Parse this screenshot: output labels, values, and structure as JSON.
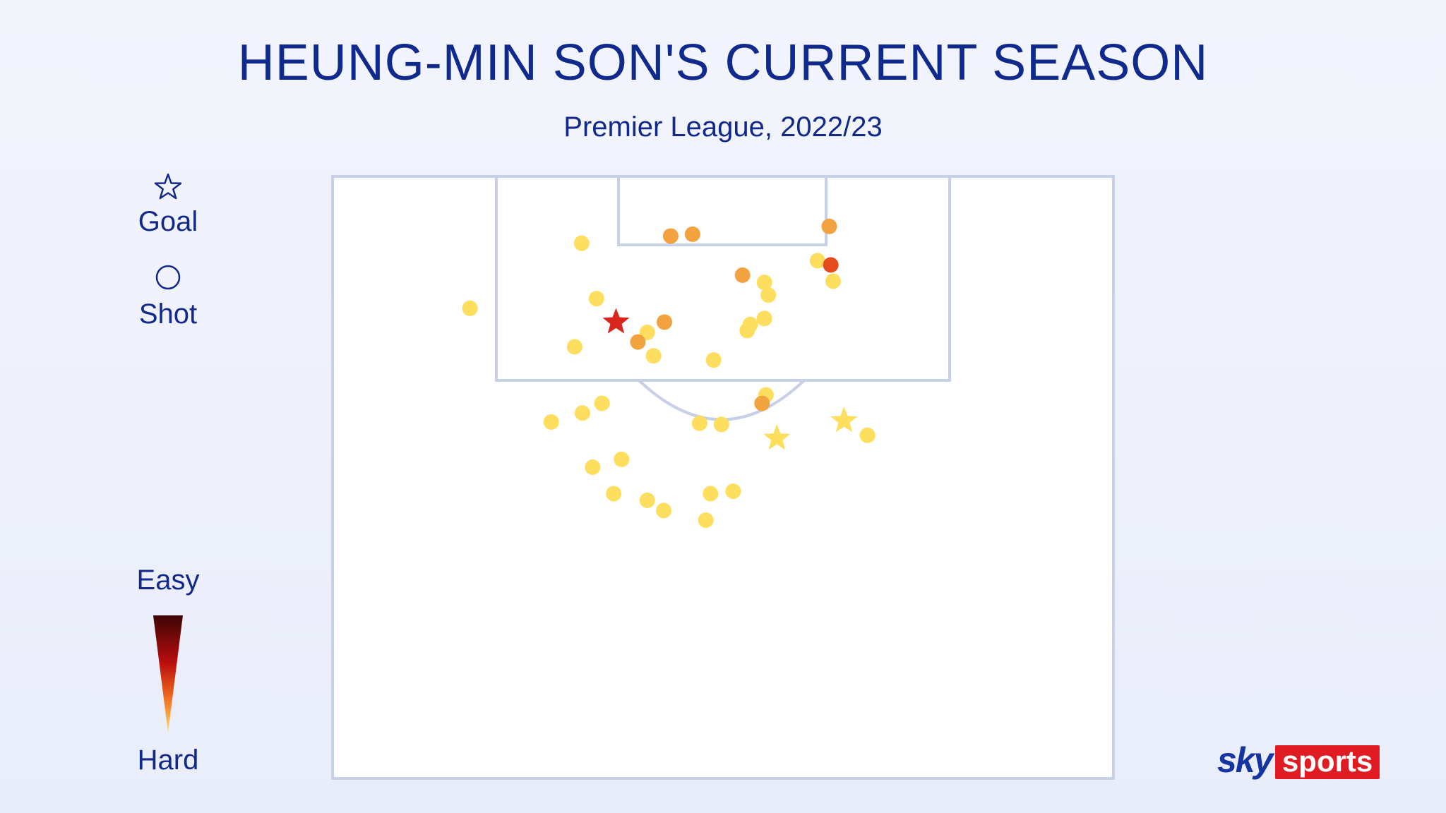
{
  "title": "HEUNG-MIN SON'S CURRENT SEASON",
  "subtitle": "Premier League, 2022/23",
  "legend": {
    "goal_label": "Goal",
    "shot_label": "Shot",
    "scale_top_label": "Easy",
    "scale_bottom_label": "Hard",
    "goal_icon": "star-outline-icon",
    "shot_icon": "circle-outline-icon",
    "scale_colors": [
      "#3d0505",
      "#b80d0d",
      "#f06a1c",
      "#fde36b"
    ]
  },
  "logo": {
    "sky": "sky",
    "sports": "sports"
  },
  "colors": {
    "title": "#0f2a8c",
    "pitch_lines": "#c7d0e6",
    "pitch_fill": "#ffffff",
    "hard": "#fede5e",
    "medium": "#f3a240",
    "easy": "#e64b1e",
    "very_easy": "#d9261c"
  },
  "chart_data": {
    "type": "scatter",
    "x_range": [
      0,
      1
    ],
    "y_range": [
      0,
      1
    ],
    "series": [
      {
        "type": "shot",
        "points": [
          {
            "x": 0.176,
            "y": 0.219,
            "difficulty": 0.1
          },
          {
            "x": 0.319,
            "y": 0.111,
            "difficulty": 0.1
          },
          {
            "x": 0.433,
            "y": 0.099,
            "difficulty": 0.45
          },
          {
            "x": 0.461,
            "y": 0.096,
            "difficulty": 0.45
          },
          {
            "x": 0.636,
            "y": 0.083,
            "difficulty": 0.45
          },
          {
            "x": 0.621,
            "y": 0.14,
            "difficulty": 0.1
          },
          {
            "x": 0.638,
            "y": 0.147,
            "difficulty": 0.6
          },
          {
            "x": 0.641,
            "y": 0.174,
            "difficulty": 0.1
          },
          {
            "x": 0.525,
            "y": 0.164,
            "difficulty": 0.45
          },
          {
            "x": 0.553,
            "y": 0.176,
            "difficulty": 0.1
          },
          {
            "x": 0.558,
            "y": 0.197,
            "difficulty": 0.1
          },
          {
            "x": 0.338,
            "y": 0.203,
            "difficulty": 0.1
          },
          {
            "x": 0.425,
            "y": 0.242,
            "difficulty": 0.45
          },
          {
            "x": 0.403,
            "y": 0.259,
            "difficulty": 0.1
          },
          {
            "x": 0.391,
            "y": 0.275,
            "difficulty": 0.45
          },
          {
            "x": 0.31,
            "y": 0.283,
            "difficulty": 0.1
          },
          {
            "x": 0.411,
            "y": 0.298,
            "difficulty": 0.1
          },
          {
            "x": 0.488,
            "y": 0.305,
            "difficulty": 0.1
          },
          {
            "x": 0.535,
            "y": 0.246,
            "difficulty": 0.1
          },
          {
            "x": 0.553,
            "y": 0.236,
            "difficulty": 0.1
          },
          {
            "x": 0.531,
            "y": 0.256,
            "difficulty": 0.1
          },
          {
            "x": 0.555,
            "y": 0.363,
            "difficulty": 0.1
          },
          {
            "x": 0.55,
            "y": 0.377,
            "difficulty": 0.45
          },
          {
            "x": 0.28,
            "y": 0.408,
            "difficulty": 0.1
          },
          {
            "x": 0.32,
            "y": 0.393,
            "difficulty": 0.1
          },
          {
            "x": 0.345,
            "y": 0.377,
            "difficulty": 0.1
          },
          {
            "x": 0.47,
            "y": 0.41,
            "difficulty": 0.1
          },
          {
            "x": 0.498,
            "y": 0.412,
            "difficulty": 0.1
          },
          {
            "x": 0.685,
            "y": 0.43,
            "difficulty": 0.1
          },
          {
            "x": 0.333,
            "y": 0.483,
            "difficulty": 0.1
          },
          {
            "x": 0.37,
            "y": 0.47,
            "difficulty": 0.1
          },
          {
            "x": 0.36,
            "y": 0.527,
            "difficulty": 0.1
          },
          {
            "x": 0.403,
            "y": 0.538,
            "difficulty": 0.1
          },
          {
            "x": 0.424,
            "y": 0.555,
            "difficulty": 0.1
          },
          {
            "x": 0.484,
            "y": 0.527,
            "difficulty": 0.1
          },
          {
            "x": 0.513,
            "y": 0.523,
            "difficulty": 0.1
          },
          {
            "x": 0.478,
            "y": 0.571,
            "difficulty": 0.1
          }
        ]
      },
      {
        "type": "goal",
        "points": [
          {
            "x": 0.363,
            "y": 0.242,
            "difficulty": 0.9
          },
          {
            "x": 0.655,
            "y": 0.406,
            "difficulty": 0.1
          },
          {
            "x": 0.569,
            "y": 0.435,
            "difficulty": 0.1
          }
        ]
      }
    ]
  }
}
